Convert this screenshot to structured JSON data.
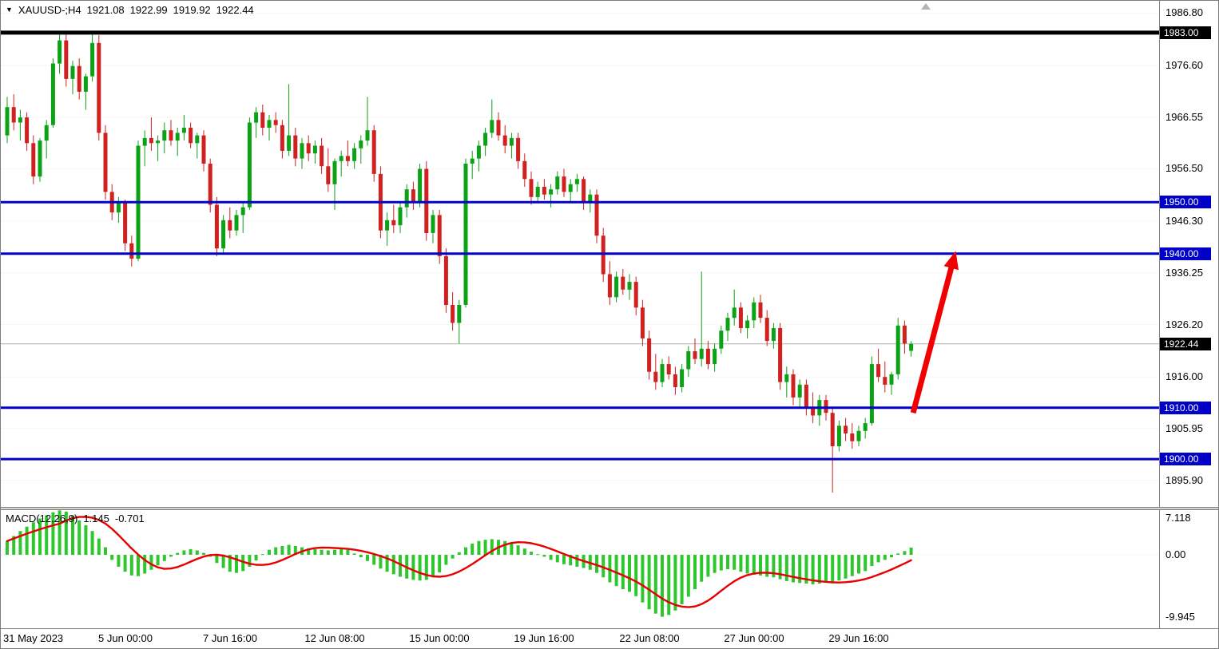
{
  "header": {
    "dropdown_icon": "▼",
    "symbol_period": "XAUUSD-;H4",
    "open": "1921.08",
    "high": "1922.99",
    "low": "1919.92",
    "close": "1922.44"
  },
  "price_axis": {
    "ticks": [
      {
        "text": "1986.80",
        "price": 1986.8
      },
      {
        "text": "1976.60",
        "price": 1976.6
      },
      {
        "text": "1966.55",
        "price": 1966.55
      },
      {
        "text": "1956.50",
        "price": 1956.5
      },
      {
        "text": "1946.30",
        "price": 1946.3
      },
      {
        "text": "1936.25",
        "price": 1936.25
      },
      {
        "text": "1926.20",
        "price": 1926.2
      },
      {
        "text": "1916.00",
        "price": 1916.0
      },
      {
        "text": "1905.95",
        "price": 1905.95
      },
      {
        "text": "1895.90",
        "price": 1895.9
      }
    ],
    "badges": [
      {
        "text": "1983.00",
        "price": 1983.0,
        "bg": "#000000"
      },
      {
        "text": "1950.00",
        "price": 1950.0,
        "bg": "#0000c8"
      },
      {
        "text": "1940.00",
        "price": 1940.0,
        "bg": "#0000c8"
      },
      {
        "text": "1922.44",
        "price": 1922.44,
        "bg": "#000000"
      },
      {
        "text": "1910.00",
        "price": 1910.0,
        "bg": "#0000c8"
      },
      {
        "text": "1900.00",
        "price": 1900.0,
        "bg": "#0000c8"
      }
    ]
  },
  "time_axis": {
    "labels": [
      {
        "text": "31 May 2023",
        "bar": 0
      },
      {
        "text": "5 Jun 00:00",
        "bar": 18
      },
      {
        "text": "7 Jun 16:00",
        "bar": 34
      },
      {
        "text": "12 Jun 08:00",
        "bar": 50
      },
      {
        "text": "15 Jun 00:00",
        "bar": 66
      },
      {
        "text": "19 Jun 16:00",
        "bar": 82
      },
      {
        "text": "22 Jun 08:00",
        "bar": 98
      },
      {
        "text": "27 Jun 00:00",
        "bar": 114
      },
      {
        "text": "29 Jun 16:00",
        "bar": 130
      }
    ]
  },
  "macd_panel": {
    "label": "MACD(12,26,9)",
    "value_main": "1.145",
    "value_signal": "-0.701",
    "axis": [
      {
        "text": "7.118",
        "value": 7.118
      },
      {
        "text": "0.00",
        "value": 0
      },
      {
        "text": "-9.945",
        "value": -9.945
      }
    ]
  },
  "chart_data": {
    "type": "candlestick",
    "symbol": "XAUUSD-",
    "timeframe": "H4",
    "last_ohlc": {
      "open": 1921.08,
      "high": 1922.99,
      "low": 1919.92,
      "close": 1922.44
    },
    "current_price": 1922.44,
    "y_axis_visible_range": [
      1890.7,
      1989.2
    ],
    "levels": [
      {
        "price": 1983.0,
        "color": "#000000",
        "width": 5
      },
      {
        "price": 1950.0,
        "color": "#0000c8",
        "width": 3
      },
      {
        "price": 1940.0,
        "color": "#0000c8",
        "width": 3
      },
      {
        "price": 1910.0,
        "color": "#0000c8",
        "width": 3
      },
      {
        "price": 1900.0,
        "color": "#0000c8",
        "width": 3
      }
    ],
    "trend_arrow": {
      "start_bar": 138.3,
      "start_price": 1909.0,
      "end_bar": 144.8,
      "end_price": 1940.5,
      "color": "#f00000",
      "width": 7
    },
    "colors": {
      "bull": "#0ca216",
      "bear": "#d02020",
      "macd_histogram": "#2dc72d",
      "macd_signal": "#e80000",
      "grid": "#e3e3e3",
      "current_price_line": "#b0b0b0"
    },
    "candles": [
      [
        1963,
        1970.5,
        1961.5,
        1968.5
      ],
      [
        1968.5,
        1971,
        1964,
        1965.5
      ],
      [
        1965.5,
        1968,
        1962,
        1966.5
      ],
      [
        1966.5,
        1967.5,
        1960,
        1961.5
      ],
      [
        1961.5,
        1963,
        1953.5,
        1955
      ],
      [
        1955,
        1962.5,
        1954,
        1962
      ],
      [
        1962,
        1966,
        1958.5,
        1965
      ],
      [
        1965,
        1978,
        1964.5,
        1977
      ],
      [
        1977,
        1983,
        1975,
        1981.5
      ],
      [
        1981.5,
        1983,
        1972.5,
        1974
      ],
      [
        1974,
        1977.5,
        1971,
        1976.5
      ],
      [
        1976.5,
        1978,
        1970,
        1971.5
      ],
      [
        1971.5,
        1975,
        1968,
        1974.5
      ],
      [
        1974.5,
        1983,
        1973.5,
        1981
      ],
      [
        1981,
        1982.5,
        1962,
        1963.5
      ],
      [
        1963.5,
        1965,
        1950.5,
        1952
      ],
      [
        1952,
        1953.5,
        1946.5,
        1948
      ],
      [
        1948,
        1951,
        1946,
        1950
      ],
      [
        1950,
        1950.5,
        1940.5,
        1942
      ],
      [
        1942,
        1943.5,
        1937.5,
        1939
      ],
      [
        1939,
        1962,
        1938.5,
        1961
      ],
      [
        1961,
        1964,
        1957,
        1962.5
      ],
      [
        1962.5,
        1966.5,
        1960,
        1961.5
      ],
      [
        1961.5,
        1963,
        1958,
        1962
      ],
      [
        1962,
        1965.5,
        1959.5,
        1964
      ],
      [
        1964,
        1966,
        1961,
        1962
      ],
      [
        1962,
        1964.5,
        1959,
        1963.5
      ],
      [
        1963.5,
        1967,
        1962,
        1964.5
      ],
      [
        1964.5,
        1965.5,
        1960.5,
        1961.5
      ],
      [
        1961.5,
        1963.5,
        1958.5,
        1963
      ],
      [
        1963,
        1964,
        1956,
        1957.5
      ],
      [
        1957.5,
        1958.5,
        1948,
        1949.5
      ],
      [
        1949.5,
        1951,
        1939.5,
        1941
      ],
      [
        1941,
        1947.5,
        1940,
        1946.5
      ],
      [
        1946.5,
        1949,
        1943,
        1944.5
      ],
      [
        1944.5,
        1948.5,
        1943.5,
        1947.5
      ],
      [
        1947.5,
        1950,
        1944,
        1949
      ],
      [
        1949,
        1966.5,
        1948.5,
        1965.5
      ],
      [
        1965.5,
        1968.5,
        1962.5,
        1967.5
      ],
      [
        1967.5,
        1969,
        1963,
        1964.5
      ],
      [
        1964.5,
        1967,
        1962,
        1966
      ],
      [
        1966,
        1967.5,
        1963.5,
        1965
      ],
      [
        1965,
        1966,
        1958.5,
        1960
      ],
      [
        1960,
        1973,
        1959,
        1963
      ],
      [
        1963,
        1964.5,
        1957,
        1958.5
      ],
      [
        1958.5,
        1962.5,
        1956.5,
        1961.5
      ],
      [
        1961.5,
        1963,
        1958,
        1959.5
      ],
      [
        1959.5,
        1962,
        1957.5,
        1961
      ],
      [
        1961,
        1962.5,
        1955.5,
        1957
      ],
      [
        1957,
        1960.5,
        1952,
        1953.5
      ],
      [
        1953.5,
        1958.5,
        1948.5,
        1958
      ],
      [
        1958,
        1960,
        1955,
        1959
      ],
      [
        1959,
        1962,
        1957,
        1958
      ],
      [
        1958,
        1961.5,
        1956.5,
        1960.5
      ],
      [
        1960.5,
        1963,
        1957.5,
        1962
      ],
      [
        1962,
        1970.5,
        1961,
        1964
      ],
      [
        1964,
        1965,
        1954,
        1955.5
      ],
      [
        1955.5,
        1957,
        1943,
        1944.5
      ],
      [
        1944.5,
        1948,
        1941.5,
        1946.5
      ],
      [
        1946.5,
        1949.5,
        1944,
        1945.5
      ],
      [
        1945.5,
        1950,
        1944,
        1949
      ],
      [
        1949,
        1953.5,
        1947,
        1952.5
      ],
      [
        1952.5,
        1954,
        1948.5,
        1950
      ],
      [
        1950,
        1957.5,
        1949,
        1956.5
      ],
      [
        1956.5,
        1958,
        1942.5,
        1944
      ],
      [
        1944,
        1948.5,
        1942,
        1947.5
      ],
      [
        1947.5,
        1948.5,
        1938,
        1939.5
      ],
      [
        1939.5,
        1941,
        1928.5,
        1930
      ],
      [
        1930,
        1932.5,
        1925,
        1926.5
      ],
      [
        1926.5,
        1931,
        1922.5,
        1930
      ],
      [
        1930,
        1958.5,
        1929.5,
        1957.5
      ],
      [
        1957.5,
        1960,
        1954.5,
        1958.5
      ],
      [
        1958.5,
        1962,
        1956,
        1961
      ],
      [
        1961,
        1964.5,
        1959,
        1963.5
      ],
      [
        1963.5,
        1970,
        1962.5,
        1966
      ],
      [
        1966,
        1967.5,
        1962,
        1963
      ],
      [
        1963,
        1965,
        1959.5,
        1961
      ],
      [
        1961,
        1963.5,
        1958.5,
        1962.5
      ],
      [
        1962.5,
        1963.5,
        1956.5,
        1958
      ],
      [
        1958,
        1959.5,
        1953,
        1954.5
      ],
      [
        1954.5,
        1956,
        1949.5,
        1951
      ],
      [
        1951,
        1954,
        1950,
        1953
      ],
      [
        1953,
        1954.5,
        1950.5,
        1951.5
      ],
      [
        1951.5,
        1953.5,
        1949,
        1952.5
      ],
      [
        1952.5,
        1956,
        1951.5,
        1955
      ],
      [
        1955,
        1956.5,
        1951,
        1952
      ],
      [
        1952,
        1954.5,
        1950,
        1953.5
      ],
      [
        1953.5,
        1955.5,
        1952,
        1954.5
      ],
      [
        1954.5,
        1955,
        1948.5,
        1950
      ],
      [
        1950,
        1952.5,
        1948,
        1951.5
      ],
      [
        1951.5,
        1952.5,
        1942,
        1943.5
      ],
      [
        1943.5,
        1945,
        1934.5,
        1936
      ],
      [
        1936,
        1938.5,
        1930,
        1931.5
      ],
      [
        1931.5,
        1936.5,
        1930.5,
        1935.5
      ],
      [
        1935.5,
        1937,
        1932,
        1933
      ],
      [
        1933,
        1936,
        1931,
        1934.5
      ],
      [
        1934.5,
        1935.5,
        1928,
        1929.5
      ],
      [
        1929.5,
        1931,
        1922,
        1923.5
      ],
      [
        1923.5,
        1925,
        1915.5,
        1917
      ],
      [
        1917,
        1920.5,
        1913.5,
        1915
      ],
      [
        1915,
        1919.5,
        1914,
        1918.5
      ],
      [
        1918.5,
        1920,
        1915.5,
        1916.5
      ],
      [
        1916.5,
        1918,
        1912.5,
        1914
      ],
      [
        1914,
        1918.5,
        1913,
        1917.5
      ],
      [
        1917.5,
        1922,
        1916,
        1921
      ],
      [
        1921,
        1923.5,
        1918.5,
        1919.5
      ],
      [
        1919.5,
        1936.5,
        1918,
        1921.5
      ],
      [
        1921.5,
        1923,
        1917.5,
        1918.5
      ],
      [
        1918.5,
        1922.5,
        1917,
        1921.5
      ],
      [
        1921.5,
        1926,
        1920.5,
        1925
      ],
      [
        1925,
        1928.5,
        1923,
        1927.5
      ],
      [
        1927.5,
        1933,
        1926,
        1929.5
      ],
      [
        1929.5,
        1930.5,
        1924.5,
        1925.5
      ],
      [
        1925.5,
        1928,
        1923.5,
        1927
      ],
      [
        1927,
        1931.5,
        1925.5,
        1930.5
      ],
      [
        1930.5,
        1932,
        1926.5,
        1927.5
      ],
      [
        1927.5,
        1929,
        1922,
        1923
      ],
      [
        1923,
        1926.5,
        1921.5,
        1925.5
      ],
      [
        1925.5,
        1926.5,
        1913.5,
        1915
      ],
      [
        1915,
        1918,
        1912,
        1916.5
      ],
      [
        1916.5,
        1917.5,
        1910.5,
        1912
      ],
      [
        1912,
        1915.5,
        1910,
        1914.5
      ],
      [
        1914.5,
        1915.5,
        1908.5,
        1910
      ],
      [
        1910,
        1913,
        1907,
        1908.5
      ],
      [
        1908.5,
        1912.5,
        1906.5,
        1911.5
      ],
      [
        1911.5,
        1912.5,
        1907.5,
        1909
      ],
      [
        1909,
        1910,
        1893.5,
        1902.5
      ],
      [
        1902.5,
        1907.5,
        1901.5,
        1906.5
      ],
      [
        1906.5,
        1908,
        1903.5,
        1905
      ],
      [
        1905,
        1907,
        1902,
        1903.5
      ],
      [
        1903.5,
        1906.5,
        1902.5,
        1905.5
      ],
      [
        1905.5,
        1908,
        1904,
        1907
      ],
      [
        1907,
        1920,
        1906.5,
        1918.5
      ],
      [
        1918.5,
        1921.5,
        1915,
        1916
      ],
      [
        1916,
        1919,
        1913,
        1914.5
      ],
      [
        1914.5,
        1917,
        1912.5,
        1916.5
      ],
      [
        1916.5,
        1927.5,
        1915.5,
        1926
      ],
      [
        1926,
        1927,
        1920.5,
        1922.5
      ],
      [
        1921.08,
        1922.99,
        1919.92,
        1922.44
      ]
    ],
    "macd": {
      "type": "histogram_with_signal",
      "label": "MACD(12,26,9)",
      "main_value": 1.145,
      "signal_value": -0.701,
      "signal_period": 9,
      "ylim": [
        -9.945,
        7.118
      ],
      "histogram": [
        2.2,
        3.0,
        3.8,
        4.5,
        5.2,
        5.8,
        6.3,
        6.8,
        7.1,
        6.9,
        6.3,
        5.5,
        4.7,
        3.8,
        2.6,
        1.2,
        -0.8,
        -1.9,
        -2.7,
        -3.3,
        -3.4,
        -3.0,
        -2.4,
        -1.7,
        -1.0,
        -0.3,
        0.3,
        0.7,
        0.9,
        0.7,
        0.3,
        -0.3,
        -1.3,
        -2.1,
        -2.7,
        -2.9,
        -2.6,
        -1.9,
        -0.9,
        0.1,
        0.8,
        1.2,
        1.4,
        1.6,
        1.4,
        1.2,
        1.0,
        0.9,
        0.8,
        0.7,
        0.8,
        0.9,
        0.8,
        0.2,
        -0.4,
        -1.0,
        -1.6,
        -2.2,
        -2.7,
        -3.1,
        -3.5,
        -3.8,
        -4.0,
        -4.1,
        -4.0,
        -3.6,
        -2.8,
        -1.6,
        -0.6,
        0.4,
        1.2,
        1.8,
        2.2,
        2.4,
        2.5,
        2.4,
        2.2,
        1.9,
        1.5,
        1.0,
        0.5,
        0.1,
        -0.3,
        -0.8,
        -1.2,
        -1.5,
        -1.7,
        -1.9,
        -2.1,
        -2.4,
        -2.9,
        -3.6,
        -4.4,
        -5.0,
        -5.5,
        -5.9,
        -6.6,
        -7.6,
        -8.7,
        -9.4,
        -9.9,
        -9.6,
        -8.9,
        -7.9,
        -6.7,
        -5.5,
        -4.3,
        -3.5,
        -2.9,
        -2.5,
        -2.3,
        -2.4,
        -2.7,
        -3.0,
        -3.2,
        -3.3,
        -3.5,
        -3.6,
        -3.9,
        -4.2,
        -4.4,
        -4.5,
        -4.6,
        -4.7,
        -4.6,
        -4.4,
        -4.3,
        -4.1,
        -3.8,
        -3.4,
        -3.0,
        -2.6,
        -1.8,
        -1.2,
        -0.8,
        -0.4,
        0.2,
        0.6,
        1.145
      ]
    }
  }
}
